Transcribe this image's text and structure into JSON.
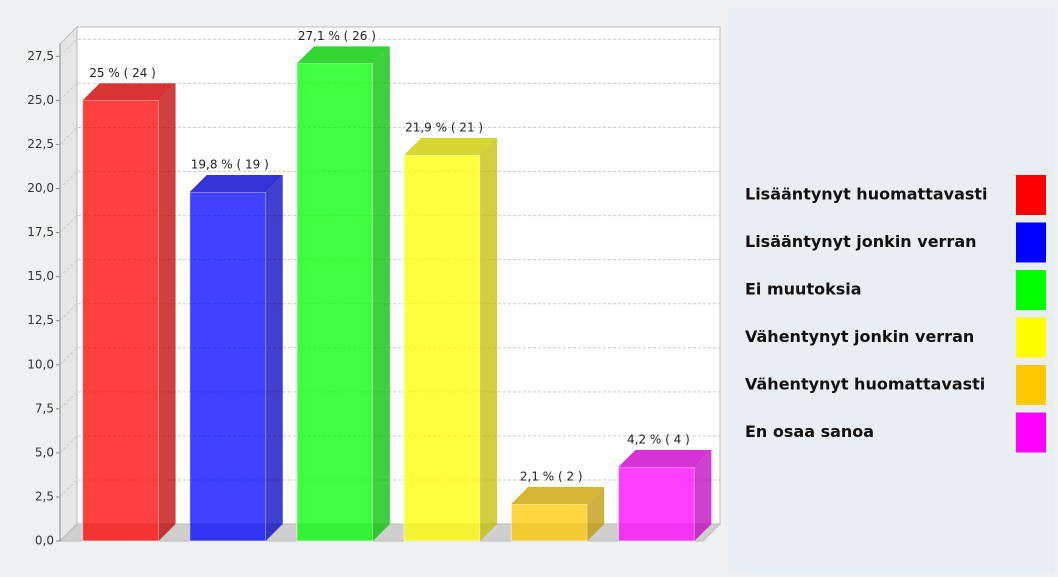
{
  "chart_data": {
    "type": "bar3d",
    "categories": [
      "Lisääntynyt huomattavasti",
      "Lisääntynyt jonkin verran",
      "Ei muutoksia",
      "Vähentynyt jonkin verran",
      "Vähentynyt huomattavasti",
      "En osaa sanoa"
    ],
    "values": [
      25,
      19.8,
      27.1,
      21.9,
      2.1,
      4.2
    ],
    "value_labels": [
      "25 % ( 24 )",
      "19,8 % ( 19 )",
      "27,1 % ( 26 )",
      "21,9 % ( 21 )",
      "2,1 % ( 2 )",
      "4,2 % ( 4 )"
    ],
    "colors": [
      "#ff0000",
      "#0000ff",
      "#00ff00",
      "#ffff00",
      "#ffc800",
      "#ff00ff"
    ],
    "ylim": [
      0,
      28.2
    ],
    "yticks": [
      {
        "value": 0,
        "label": "0,0"
      },
      {
        "value": 2.5,
        "label": "2,5"
      },
      {
        "value": 5,
        "label": "5,0"
      },
      {
        "value": 7.5,
        "label": "7,5"
      },
      {
        "value": 10,
        "label": "10,0"
      },
      {
        "value": 12.5,
        "label": "12,5"
      },
      {
        "value": 15,
        "label": "15,0"
      },
      {
        "value": 17.5,
        "label": "17,5"
      },
      {
        "value": 20,
        "label": "20,0"
      },
      {
        "value": 22.5,
        "label": "22,5"
      },
      {
        "value": 25,
        "label": "25,0"
      },
      {
        "value": 27.5,
        "label": "27,5"
      }
    ],
    "grid": true,
    "legend": "right"
  }
}
